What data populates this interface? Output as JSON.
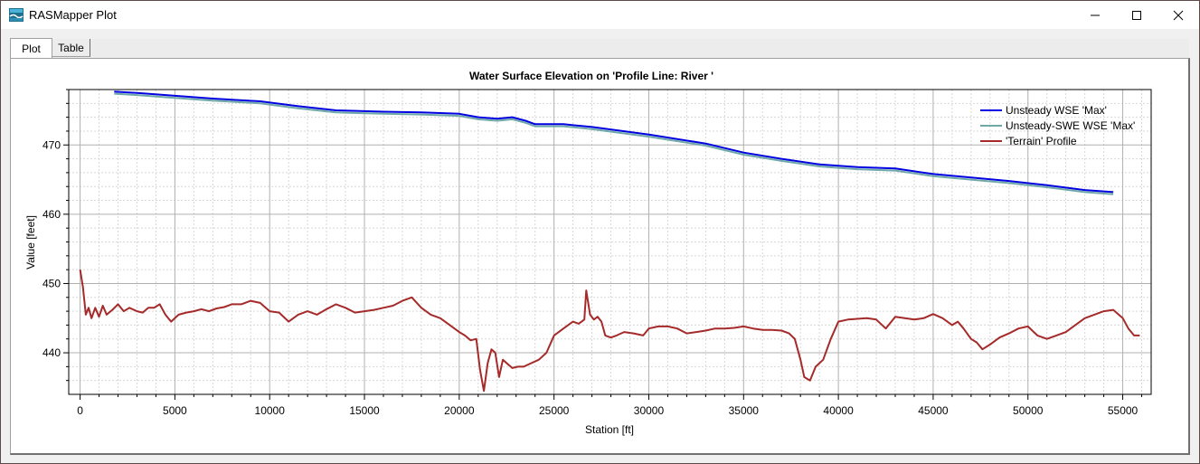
{
  "window": {
    "title": "RASMapper Plot",
    "icon": "rasmapper-app-icon",
    "buttons": [
      "minimize-icon",
      "maximize-icon",
      "close-icon"
    ]
  },
  "tabs": [
    {
      "label": "Plot",
      "selected": true
    },
    {
      "label": "Table",
      "selected": false
    }
  ],
  "chart_data": {
    "type": "line",
    "title": "Water Surface Elevation on 'Profile Line: River '",
    "xlabel": "Station [ft]",
    "ylabel": "Value [feet]",
    "xlim": [
      -600,
      56500
    ],
    "ylim": [
      434,
      478
    ],
    "xticks": [
      0,
      5000,
      10000,
      15000,
      20000,
      25000,
      30000,
      35000,
      40000,
      45000,
      50000,
      55000
    ],
    "yticks": [
      440,
      450,
      460,
      470
    ],
    "grid": true,
    "legend_position": "top-right",
    "series": [
      {
        "name": "Unsteady WSE 'Max'",
        "color": "#0000e0",
        "x": [
          1800,
          3000,
          5000,
          7000,
          9500,
          11500,
          13500,
          16000,
          18000,
          20000,
          21000,
          22000,
          22800,
          23500,
          24000,
          25500,
          27000,
          30000,
          33000,
          35000,
          37000,
          39000,
          41000,
          43000,
          45000,
          47000,
          49000,
          51000,
          53000,
          54500
        ],
        "y": [
          477.7,
          477.5,
          477.1,
          476.7,
          476.3,
          475.6,
          475.0,
          474.8,
          474.7,
          474.5,
          474.0,
          473.8,
          474.0,
          473.5,
          473.0,
          473.0,
          472.6,
          471.5,
          470.2,
          468.9,
          468.0,
          467.2,
          466.8,
          466.6,
          465.8,
          465.3,
          464.8,
          464.2,
          463.5,
          463.2
        ]
      },
      {
        "name": "Unsteady-SWE WSE 'Max'",
        "color": "#6fa8a8",
        "x": [
          1800,
          3000,
          5000,
          7000,
          9500,
          11500,
          13500,
          16000,
          18000,
          20000,
          21000,
          22000,
          22800,
          23500,
          24000,
          25500,
          27000,
          30000,
          33000,
          35000,
          37000,
          39000,
          41000,
          43000,
          45000,
          47000,
          49000,
          51000,
          53000,
          54500
        ],
        "y": [
          477.4,
          477.2,
          476.8,
          476.4,
          476.0,
          475.3,
          474.7,
          474.5,
          474.4,
          474.2,
          473.7,
          473.5,
          473.7,
          473.2,
          472.7,
          472.7,
          472.3,
          471.2,
          469.9,
          468.6,
          467.7,
          466.9,
          466.5,
          466.3,
          465.5,
          465.0,
          464.5,
          463.9,
          463.2,
          462.9
        ]
      },
      {
        "name": "'Terrain' Profile",
        "color": "#a52a2a",
        "x": [
          0,
          150,
          300,
          450,
          600,
          800,
          1000,
          1200,
          1400,
          1700,
          2000,
          2300,
          2600,
          3000,
          3300,
          3600,
          3900,
          4200,
          4500,
          4800,
          5200,
          5600,
          6000,
          6400,
          6800,
          7200,
          7600,
          8000,
          8500,
          9000,
          9500,
          10000,
          10500,
          11000,
          11500,
          12000,
          12500,
          13000,
          13500,
          14000,
          14500,
          15000,
          15500,
          16000,
          16500,
          17000,
          17500,
          18000,
          18500,
          19000,
          19500,
          20000,
          20300,
          20600,
          20900,
          21100,
          21300,
          21500,
          21700,
          21900,
          22100,
          22300,
          22500,
          22800,
          23100,
          23400,
          23800,
          24200,
          24600,
          25000,
          25500,
          26000,
          26300,
          26600,
          26700,
          26900,
          27100,
          27300,
          27500,
          27700,
          28000,
          28300,
          28700,
          29200,
          29700,
          30000,
          30500,
          31000,
          31500,
          32000,
          32500,
          33000,
          33500,
          34000,
          34500,
          35000,
          35500,
          36000,
          36500,
          37000,
          37400,
          37700,
          38000,
          38200,
          38500,
          38800,
          39200,
          39600,
          40000,
          40500,
          41000,
          41500,
          42000,
          42500,
          43000,
          43500,
          44000,
          44500,
          45000,
          45500,
          46000,
          46300,
          46600,
          47000,
          47300,
          47600,
          48000,
          48500,
          49000,
          49500,
          50000,
          50500,
          51000,
          51500,
          52000,
          52500,
          53000,
          53500,
          54000,
          54500,
          55000,
          55300,
          55600,
          55900
        ],
        "y": [
          452.0,
          449.5,
          445.5,
          446.5,
          445.0,
          446.5,
          445.2,
          446.8,
          445.5,
          446.2,
          447.0,
          446.0,
          446.5,
          446.0,
          445.8,
          446.5,
          446.5,
          447.0,
          445.5,
          444.5,
          445.5,
          445.8,
          446.0,
          446.3,
          446.0,
          446.4,
          446.6,
          447.0,
          447.0,
          447.5,
          447.2,
          446.0,
          445.8,
          444.5,
          445.5,
          446.0,
          445.5,
          446.3,
          447.0,
          446.5,
          445.8,
          446.0,
          446.2,
          446.5,
          446.8,
          447.5,
          448.0,
          446.5,
          445.5,
          445.0,
          444.0,
          443.0,
          442.5,
          441.8,
          442.0,
          437.5,
          434.5,
          438.5,
          440.5,
          440.0,
          436.5,
          439.0,
          438.5,
          437.8,
          438.0,
          438.0,
          438.5,
          439.0,
          440.0,
          442.5,
          443.5,
          444.5,
          444.2,
          444.8,
          449.0,
          445.5,
          444.8,
          445.2,
          444.5,
          442.5,
          442.2,
          442.5,
          443.0,
          442.8,
          442.5,
          443.5,
          443.8,
          443.8,
          443.5,
          442.8,
          443.0,
          443.2,
          443.5,
          443.5,
          443.6,
          443.8,
          443.5,
          443.3,
          443.3,
          443.2,
          442.8,
          442.0,
          439.0,
          436.5,
          436.0,
          438.0,
          439.0,
          442.0,
          444.5,
          444.8,
          444.9,
          445.0,
          444.8,
          443.5,
          445.2,
          445.0,
          444.8,
          445.0,
          445.6,
          445.0,
          444.0,
          444.5,
          443.5,
          442.0,
          441.5,
          440.5,
          441.2,
          442.2,
          442.8,
          443.5,
          443.8,
          442.5,
          442.0,
          442.5,
          443.0,
          444.0,
          445.0,
          445.5,
          446.0,
          446.2,
          445.0,
          443.5,
          442.5,
          442.5
        ]
      }
    ]
  }
}
